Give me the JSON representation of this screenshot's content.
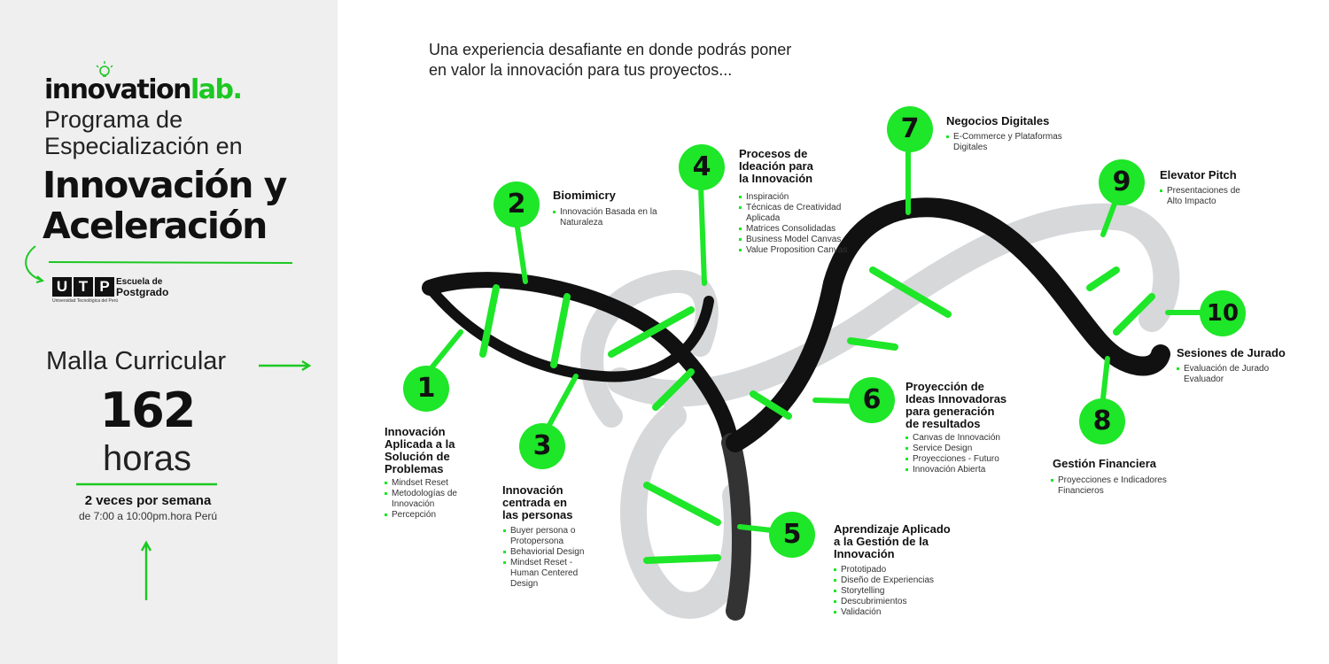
{
  "brand": {
    "name_main": "innovation",
    "name_accent": "lab."
  },
  "program": {
    "line1": "Programa de",
    "line2": "Especialización en",
    "big1": "Innovación y",
    "big2": "Aceleración"
  },
  "school": {
    "logo": "UTP",
    "logo_letters": [
      "U",
      "T",
      "P"
    ],
    "sub": "Universidad Tecnológica del Perú",
    "label1": "Escuela de",
    "label2": "Postgrado"
  },
  "curriculum": {
    "title": "Malla Curricular",
    "hours_value": "162",
    "hours_label": "horas",
    "frequency": "2 veces por semana",
    "schedule": "de 7:00 a 10:00pm.hora Perú"
  },
  "intro": {
    "line1": "Una experiencia desafiante en donde podrás poner",
    "line2": "en valor la innovación para tus proyectos..."
  },
  "colors": {
    "accent": "#1ee628",
    "dark": "#111111",
    "strand_gray": "#d6d8da",
    "left_bg": "#efefef"
  },
  "modules": [
    {
      "num": "1",
      "title": [
        "Innovación",
        "Aplicada a la",
        "Solución de",
        "Problemas"
      ],
      "items": [
        "Mindset Reset",
        "Metodologías de Innovación",
        "Percepción"
      ]
    },
    {
      "num": "2",
      "title": [
        "Biomimicry"
      ],
      "items": [
        "Innovación Basada en la Naturaleza"
      ]
    },
    {
      "num": "3",
      "title": [
        "Innovación",
        "centrada en",
        "las personas"
      ],
      "items": [
        "Buyer persona o Protopersona",
        "Behaviorial Design",
        "Mindset Reset - Human Centered Design"
      ]
    },
    {
      "num": "4",
      "title": [
        "Procesos de",
        "Ideación para",
        "la Innovación"
      ],
      "items": [
        "Inspiración",
        "Técnicas de Creatividad Aplicada",
        "Matrices Consolidadas",
        "Business Model Canvas",
        "Value Proposition Canvas"
      ]
    },
    {
      "num": "5",
      "title": [
        "Aprendizaje Aplicado",
        "a la Gestión de la",
        "Innovación"
      ],
      "items": [
        "Prototipado",
        "Diseño de Experiencias",
        "Storytelling",
        "Descubrimientos",
        "Validación"
      ]
    },
    {
      "num": "6",
      "title": [
        "Proyección de",
        "Ideas Innovadoras",
        "para generación",
        "de resultados"
      ],
      "items": [
        "Canvas de Innovación",
        "Service Design",
        "Proyecciones - Futuro",
        "Innovación Abierta"
      ]
    },
    {
      "num": "7",
      "title": [
        "Negocios Digitales"
      ],
      "items": [
        "E-Commerce y Plataformas Digitales"
      ]
    },
    {
      "num": "8",
      "title": [
        "Gestión Financiera"
      ],
      "items": [
        "Proyecciones e Indicadores Financieros"
      ]
    },
    {
      "num": "9",
      "title": [
        "Elevator Pitch"
      ],
      "items": [
        "Presentaciones de Alto Impacto"
      ]
    },
    {
      "num": "10",
      "title": [
        "Sesiones de Jurado"
      ],
      "items": [
        "Evaluación de Jurado Evaluador"
      ]
    }
  ]
}
